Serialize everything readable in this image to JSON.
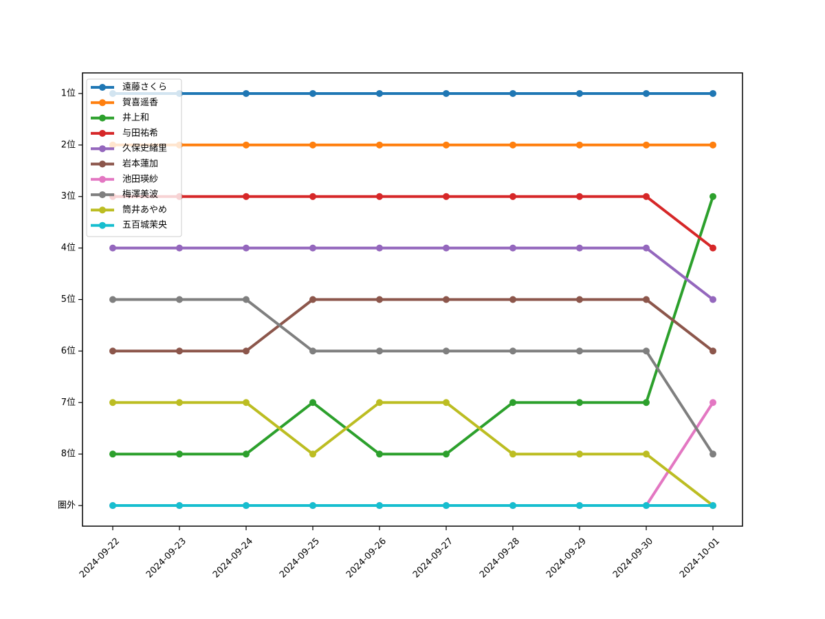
{
  "chart_data": {
    "type": "line",
    "title": "",
    "xlabel": "",
    "ylabel": "",
    "x": [
      "2024-09-22",
      "2024-09-23",
      "2024-09-24",
      "2024-09-25",
      "2024-09-26",
      "2024-09-27",
      "2024-09-28",
      "2024-09-29",
      "2024-09-30",
      "2024-10-01"
    ],
    "y_ticks": [
      {
        "value": 1,
        "label": "1位"
      },
      {
        "value": 2,
        "label": "2位"
      },
      {
        "value": 3,
        "label": "3位"
      },
      {
        "value": 4,
        "label": "4位"
      },
      {
        "value": 5,
        "label": "5位"
      },
      {
        "value": 6,
        "label": "6位"
      },
      {
        "value": 7,
        "label": "7位"
      },
      {
        "value": 8,
        "label": "8位"
      },
      {
        "value": 9,
        "label": "圏外"
      }
    ],
    "y_inverted": true,
    "ylim": [
      9.4,
      0.6
    ],
    "grid": false,
    "legend_position": "top-left",
    "series": [
      {
        "name": "遠藤さくら",
        "color": "#1f77b4",
        "values": [
          1,
          1,
          1,
          1,
          1,
          1,
          1,
          1,
          1,
          1
        ]
      },
      {
        "name": "賀喜遥香",
        "color": "#ff7f0e",
        "values": [
          2,
          2,
          2,
          2,
          2,
          2,
          2,
          2,
          2,
          2
        ]
      },
      {
        "name": "井上和",
        "color": "#2ca02c",
        "values": [
          8,
          8,
          8,
          7,
          8,
          8,
          7,
          7,
          7,
          3
        ]
      },
      {
        "name": "与田祐希",
        "color": "#d62728",
        "values": [
          3,
          3,
          3,
          3,
          3,
          3,
          3,
          3,
          3,
          4
        ]
      },
      {
        "name": "久保史緒里",
        "color": "#9467bd",
        "values": [
          4,
          4,
          4,
          4,
          4,
          4,
          4,
          4,
          4,
          5
        ]
      },
      {
        "name": "岩本蓮加",
        "color": "#8c564b",
        "values": [
          6,
          6,
          6,
          5,
          5,
          5,
          5,
          5,
          5,
          6
        ]
      },
      {
        "name": "池田瑛紗",
        "color": "#e377c2",
        "values": [
          9,
          9,
          9,
          9,
          9,
          9,
          9,
          9,
          9,
          7
        ]
      },
      {
        "name": "梅澤美波",
        "color": "#7f7f7f",
        "values": [
          5,
          5,
          5,
          6,
          6,
          6,
          6,
          6,
          6,
          8
        ]
      },
      {
        "name": "筒井あやめ",
        "color": "#bcbd22",
        "values": [
          7,
          7,
          7,
          8,
          7,
          7,
          8,
          8,
          8,
          9
        ]
      },
      {
        "name": "五百城茉央",
        "color": "#17becf",
        "values": [
          9,
          9,
          9,
          9,
          9,
          9,
          9,
          9,
          9,
          9
        ]
      }
    ]
  }
}
